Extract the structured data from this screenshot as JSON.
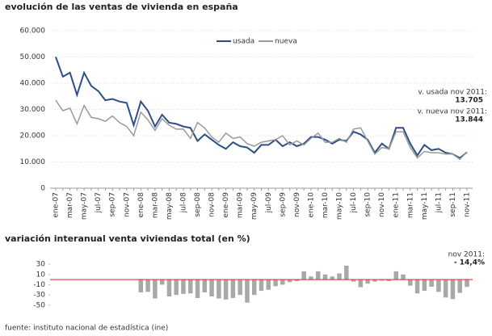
{
  "chart_data": [
    {
      "type": "line",
      "title": "evolución de las ventas de vivienda en españa",
      "categories": [
        "ene-07",
        null,
        "mar-07",
        null,
        "may-07",
        null,
        "jul-07",
        null,
        "sep-07",
        null,
        "nov-07",
        null,
        "ene-08",
        null,
        "mar-08",
        null,
        "may-08",
        null,
        "jul-08",
        null,
        "sep-08",
        null,
        "nov-08",
        null,
        "ene-09",
        null,
        "mar-09",
        null,
        "may-09",
        null,
        "jul-09",
        null,
        "sep-09",
        null,
        "nov-09",
        null,
        "ene-10",
        null,
        "mar-10",
        null,
        "may-10",
        null,
        "jul-10",
        null,
        "sep-10",
        null,
        "nov-10",
        null,
        "ene-11",
        null,
        "mar-11",
        null,
        "may-11",
        null,
        "jul-11",
        null,
        "sep-11",
        null,
        "nov-11"
      ],
      "series": [
        {
          "name": "usada",
          "color": "#2c4f86",
          "values": [
            50000,
            42500,
            44000,
            35500,
            44000,
            39000,
            37000,
            33500,
            34000,
            33000,
            32500,
            24000,
            33000,
            29500,
            23500,
            28000,
            25000,
            24500,
            23500,
            23000,
            18000,
            20500,
            18500,
            16500,
            15000,
            17500,
            16000,
            15500,
            13500,
            16500,
            16500,
            18500,
            16000,
            17500,
            16000,
            17000,
            19500,
            19500,
            18500,
            17000,
            18500,
            18000,
            21500,
            20500,
            18500,
            13500,
            17000,
            15000,
            23000,
            23000,
            17000,
            12500,
            16500,
            14500,
            15000,
            13500,
            13000,
            11500,
            13705
          ]
        },
        {
          "name": "nueva",
          "color": "#9a9a9a",
          "values": [
            33500,
            29500,
            30500,
            24500,
            31500,
            27000,
            26500,
            25500,
            27500,
            25000,
            23500,
            20000,
            29000,
            26000,
            22000,
            26500,
            24000,
            22500,
            22500,
            19000,
            25000,
            23000,
            19500,
            17500,
            21000,
            19000,
            19500,
            17000,
            16000,
            17500,
            18000,
            18500,
            20000,
            16500,
            18000,
            16500,
            19000,
            21000,
            17500,
            17500,
            19000,
            17500,
            22500,
            23000,
            18000,
            13000,
            15500,
            15000,
            21500,
            21500,
            15500,
            11500,
            14000,
            13500,
            13500,
            13000,
            13000,
            11000,
            13844
          ]
        }
      ],
      "ylim": [
        0,
        60000
      ],
      "yticks": [
        0,
        {
          "value": 10000,
          "label": "10.000"
        },
        {
          "value": 20000,
          "label": "20.000"
        },
        {
          "value": 30000,
          "label": "30.000"
        },
        {
          "value": 40000,
          "label": "40.000"
        },
        {
          "value": 50000,
          "label": "50.000"
        },
        {
          "value": 60000,
          "label": "60.000"
        }
      ],
      "grid": true,
      "annotations": [
        "v. usada nov 2011:",
        "13.705",
        "v. nueva nov 2011:",
        "13.844"
      ]
    },
    {
      "type": "bar",
      "title": "variación interanual venta viviendas total (en %)",
      "color": "#a8a8a8",
      "values": [
        null,
        null,
        null,
        null,
        null,
        null,
        null,
        null,
        null,
        null,
        null,
        null,
        -25,
        -24,
        -37,
        -10,
        -33,
        -30,
        -28,
        -27,
        -36,
        -25,
        -33,
        -37,
        -39,
        -36,
        -30,
        -45,
        -30,
        -22,
        -20,
        -13,
        -10,
        -5,
        -3,
        16,
        6,
        16,
        10,
        6,
        12,
        27,
        -4,
        -15,
        -8,
        -4,
        -2,
        -3,
        16,
        10,
        -12,
        -27,
        -22,
        -14,
        -24,
        -35,
        -38,
        -26,
        -14.4
      ],
      "ylim": [
        -55,
        38
      ],
      "yticks": [
        30,
        10,
        -10,
        -30,
        -50
      ],
      "annotations": [
        "nov 2011:",
        "- 14,4%"
      ]
    }
  ],
  "source": "fuente: instituto nacional de estadística (ine)"
}
